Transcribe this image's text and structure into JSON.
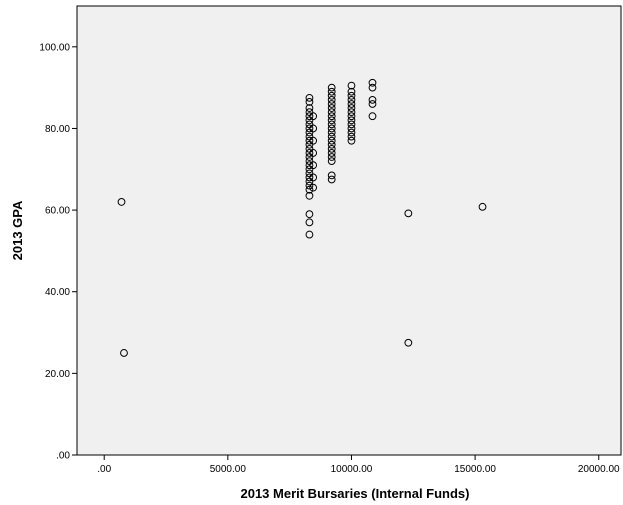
{
  "chart_data": {
    "type": "scatter",
    "title": "",
    "xlabel": "2013  Merit Bursaries (Internal Funds)",
    "ylabel": "2013 GPA",
    "xlim": [
      -1100,
      20900
    ],
    "ylim": [
      0,
      110
    ],
    "x_ticks": [
      0,
      5000,
      10000,
      15000,
      20000
    ],
    "x_tick_labels": [
      ".00",
      "5000.00",
      "10000.00",
      "15000.00",
      "20000.00"
    ],
    "y_ticks": [
      0,
      20,
      40,
      60,
      80,
      100
    ],
    "y_tick_labels": [
      ".00",
      "20.00",
      "40.00",
      "60.00",
      "80.00",
      "100.00"
    ],
    "grid": false,
    "legend": "none",
    "colors": {
      "plot_bg": "#f0f0f0",
      "marker": "#000000"
    },
    "series": [
      {
        "points": [
          [
            700,
            62
          ],
          [
            800,
            25
          ],
          [
            12300,
            59.2
          ],
          [
            12300,
            27.5
          ],
          [
            15300,
            60.8
          ],
          [
            8300,
            54
          ],
          [
            8300,
            57
          ],
          [
            8300,
            59
          ],
          [
            8300,
            63.5
          ],
          [
            8300,
            65
          ],
          [
            8300,
            66
          ],
          [
            8300,
            67
          ],
          [
            8300,
            68
          ],
          [
            8300,
            69
          ],
          [
            8300,
            70
          ],
          [
            8300,
            71
          ],
          [
            8300,
            72
          ],
          [
            8300,
            73
          ],
          [
            8300,
            74
          ],
          [
            8300,
            75
          ],
          [
            8300,
            76
          ],
          [
            8300,
            77
          ],
          [
            8300,
            78
          ],
          [
            8300,
            79
          ],
          [
            8300,
            80
          ],
          [
            8300,
            81
          ],
          [
            8300,
            82
          ],
          [
            8300,
            83
          ],
          [
            8300,
            84
          ],
          [
            8300,
            85
          ],
          [
            8300,
            86.5
          ],
          [
            8300,
            87.5
          ],
          [
            8450,
            65.5
          ],
          [
            8450,
            68
          ],
          [
            8450,
            71
          ],
          [
            8450,
            74
          ],
          [
            8450,
            77
          ],
          [
            8450,
            80
          ],
          [
            8450,
            83
          ],
          [
            9200,
            67.5
          ],
          [
            9200,
            68.5
          ],
          [
            9200,
            72
          ],
          [
            9200,
            73
          ],
          [
            9200,
            74
          ],
          [
            9200,
            75
          ],
          [
            9200,
            76
          ],
          [
            9200,
            77
          ],
          [
            9200,
            78
          ],
          [
            9200,
            79
          ],
          [
            9200,
            80
          ],
          [
            9200,
            81
          ],
          [
            9200,
            82
          ],
          [
            9200,
            83
          ],
          [
            9200,
            84
          ],
          [
            9200,
            85
          ],
          [
            9200,
            86
          ],
          [
            9200,
            87
          ],
          [
            9200,
            88
          ],
          [
            9200,
            89
          ],
          [
            9200,
            90
          ],
          [
            10000,
            77
          ],
          [
            10000,
            78
          ],
          [
            10000,
            79
          ],
          [
            10000,
            80
          ],
          [
            10000,
            81
          ],
          [
            10000,
            82
          ],
          [
            10000,
            83
          ],
          [
            10000,
            84
          ],
          [
            10000,
            85
          ],
          [
            10000,
            86
          ],
          [
            10000,
            87
          ],
          [
            10000,
            88
          ],
          [
            10000,
            89
          ],
          [
            10000,
            90.5
          ],
          [
            10850,
            83
          ],
          [
            10850,
            86
          ],
          [
            10850,
            87
          ],
          [
            10850,
            90
          ],
          [
            10850,
            91.2
          ]
        ]
      }
    ]
  }
}
